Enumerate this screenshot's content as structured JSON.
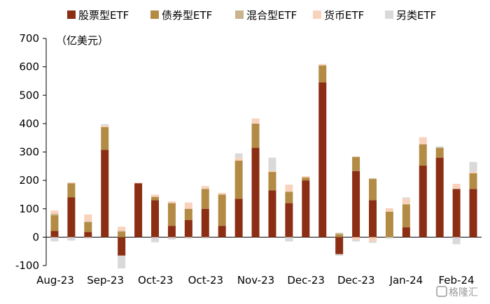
{
  "unit_label": "（亿美元）",
  "watermark": "格隆汇",
  "colors": {
    "stock": "#8B2E14",
    "bond": "#B38B45",
    "mixed": "#C9B48E",
    "money": "#F9D2BC",
    "other": "#D9D9D9",
    "axis": "#000000"
  },
  "chart_data": {
    "type": "bar",
    "stacked": true,
    "title": "",
    "xlabel": "",
    "ylabel": "（亿美元）",
    "ylim": [
      -100,
      700
    ],
    "yticks": [
      -100,
      0,
      100,
      200,
      300,
      400,
      500,
      600,
      700
    ],
    "xtick_labels": [
      "Aug-23",
      "Sep-23",
      "Oct-23",
      "Oct-23",
      "Nov-23",
      "Dec-23",
      "Dec-23",
      "Jan-24",
      "Feb-24"
    ],
    "grid": false,
    "legend_position": "top",
    "series": [
      {
        "name": "股票型ETF",
        "color": "#8B2E14",
        "values": [
          22,
          140,
          18,
          308,
          -65,
          190,
          130,
          40,
          60,
          100,
          40,
          135,
          315,
          165,
          120,
          200,
          545,
          -60,
          233,
          130,
          0,
          35,
          252,
          280,
          170,
          170
        ]
      },
      {
        "name": "债券型ETF",
        "color": "#B38B45",
        "values": [
          55,
          50,
          35,
          80,
          20,
          0,
          12,
          80,
          40,
          70,
          110,
          135,
          85,
          65,
          40,
          10,
          60,
          10,
          50,
          75,
          90,
          80,
          75,
          35,
          0,
          55
        ]
      },
      {
        "name": "混合型ETF",
        "color": "#C9B48E",
        "values": [
          5,
          0,
          2,
          0,
          2,
          0,
          0,
          0,
          0,
          0,
          0,
          0,
          0,
          0,
          0,
          0,
          0,
          5,
          0,
          2,
          0,
          2,
          0,
          0,
          0,
          0
        ]
      },
      {
        "name": "货币ETF",
        "color": "#F9D2BC",
        "values": [
          12,
          3,
          25,
          5,
          15,
          2,
          8,
          6,
          22,
          10,
          6,
          10,
          18,
          5,
          25,
          5,
          5,
          0,
          -10,
          -15,
          12,
          18,
          25,
          0,
          18,
          5
        ]
      },
      {
        "name": "另类ETF",
        "color": "#D9D9D9",
        "values": [
          -15,
          -12,
          -5,
          5,
          -45,
          0,
          -18,
          -8,
          -5,
          -5,
          0,
          15,
          0,
          45,
          -15,
          0,
          0,
          -5,
          -5,
          -5,
          -5,
          5,
          0,
          5,
          -25,
          35
        ]
      }
    ]
  }
}
